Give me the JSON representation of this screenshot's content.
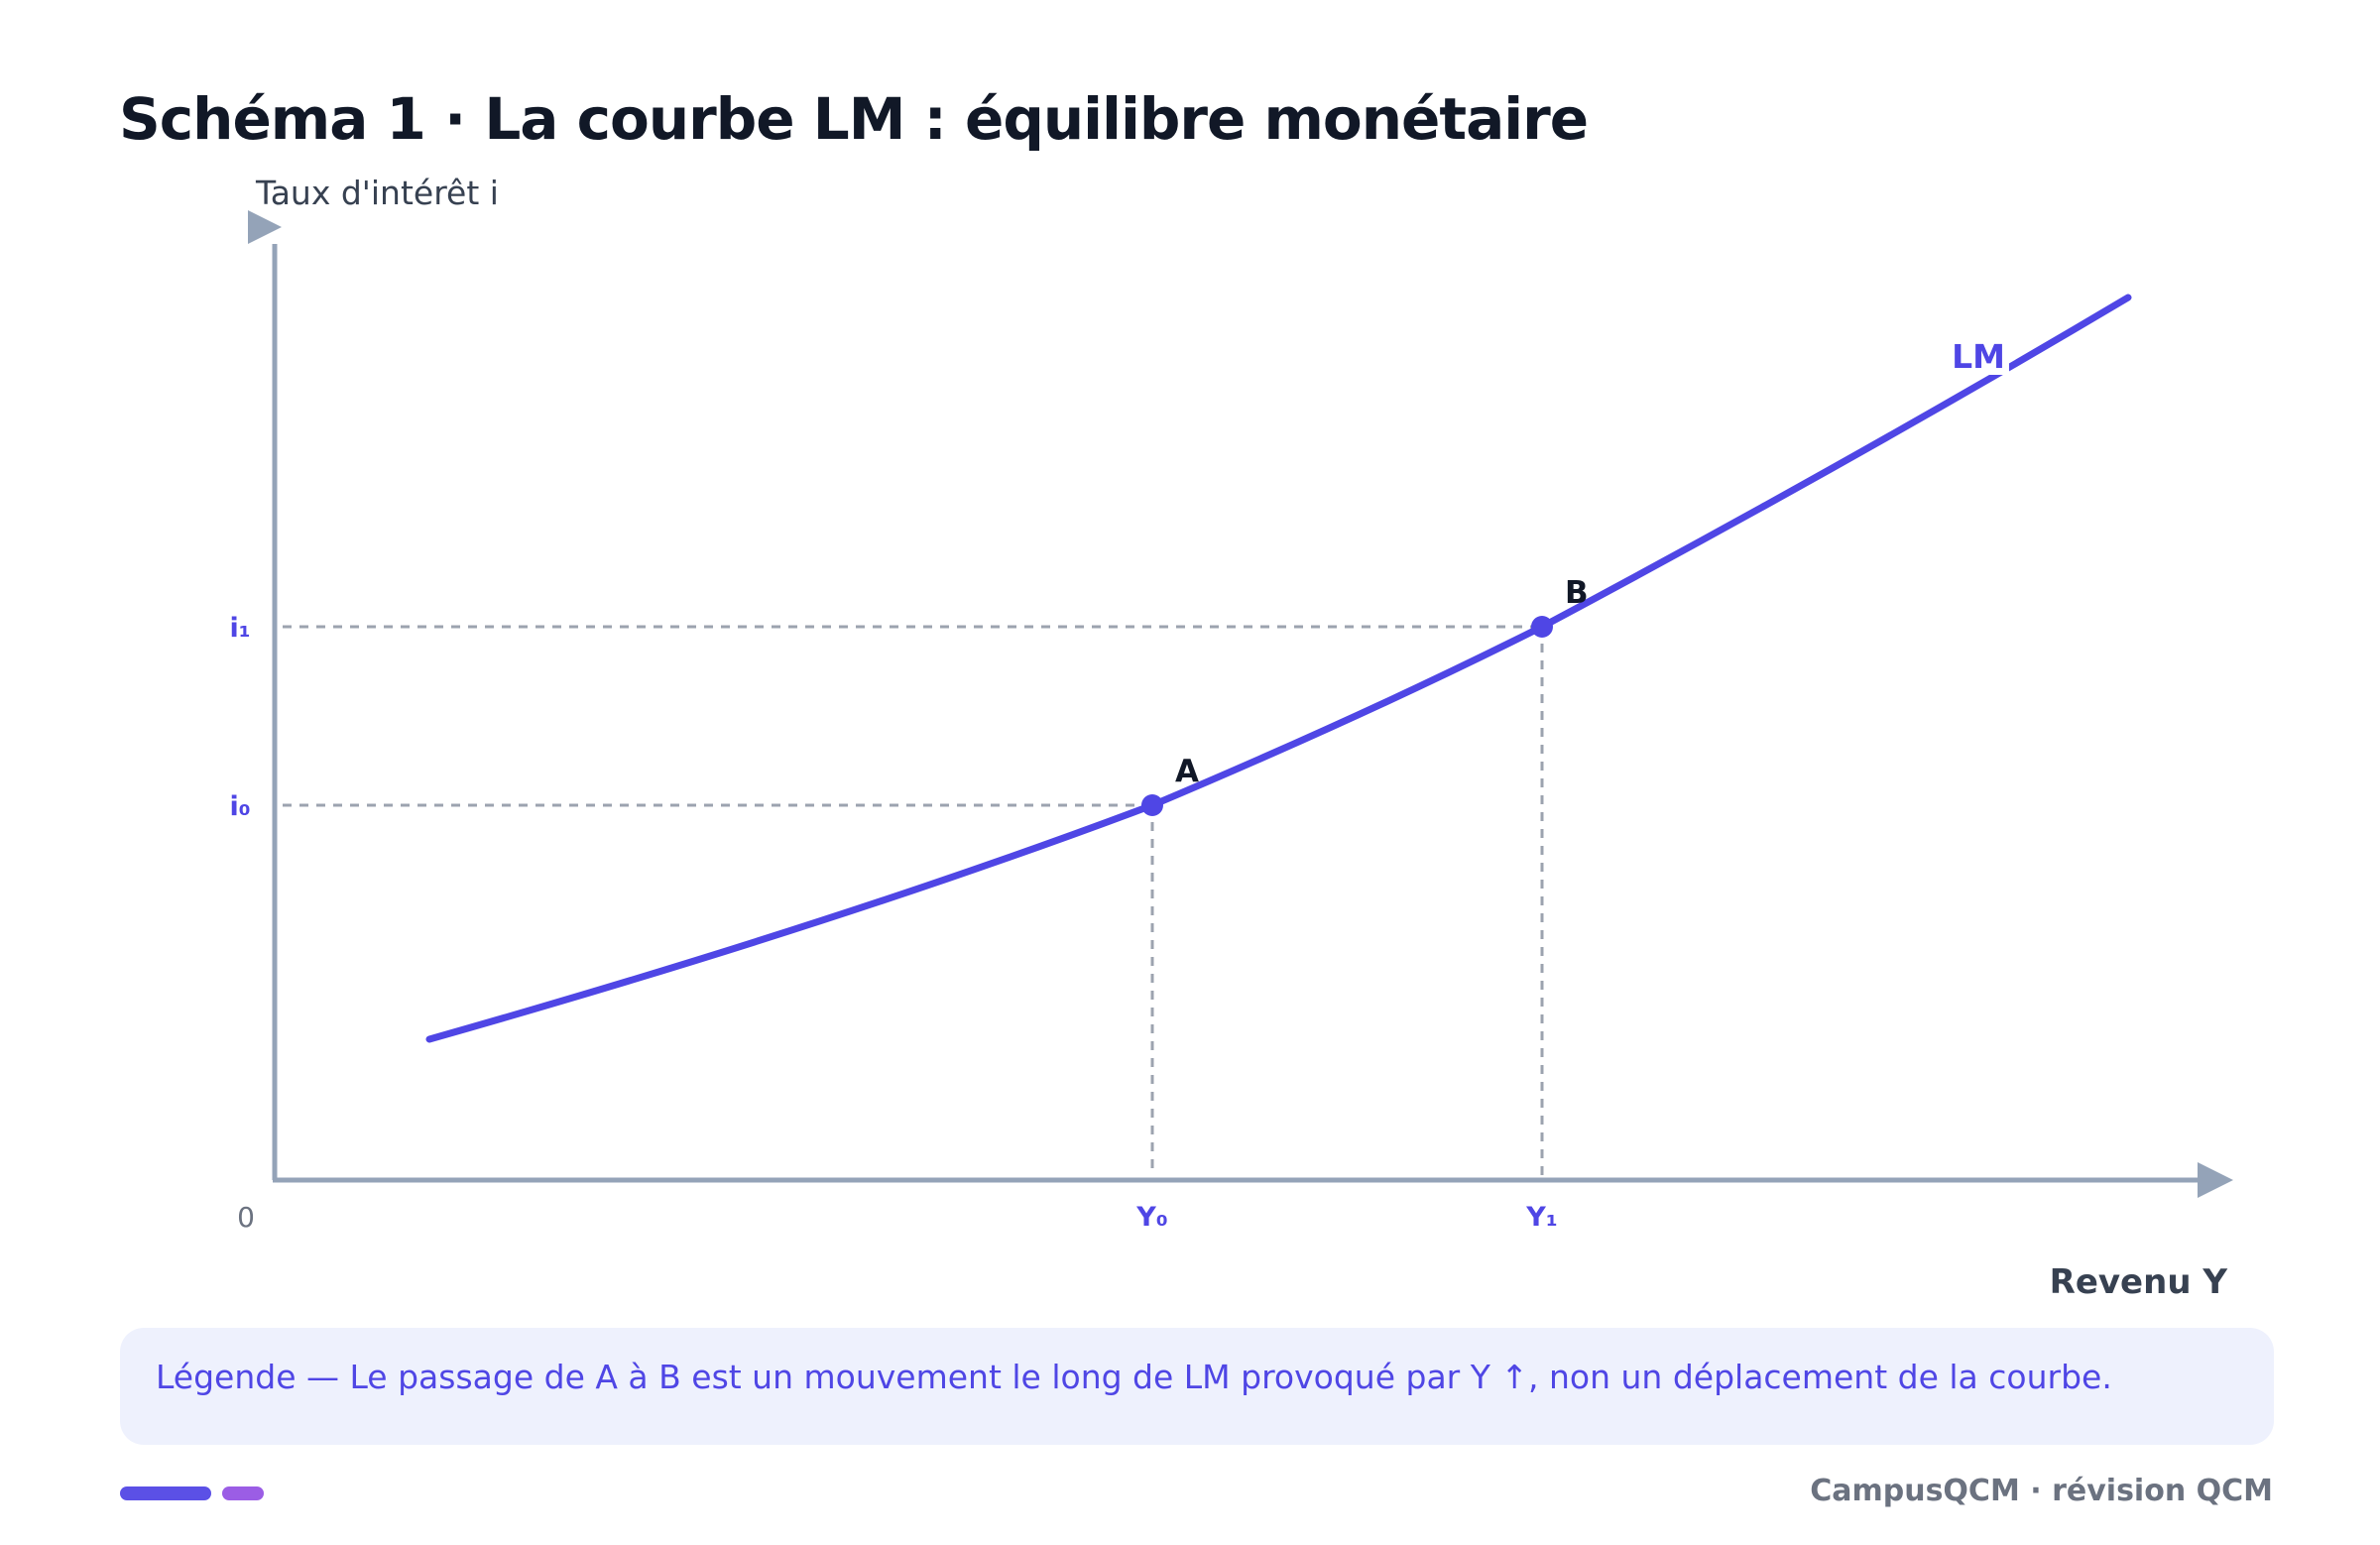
{
  "title": "Schéma 1 · La courbe LM : équilibre monétaire",
  "diagram": {
    "y_axis_label": "Taux d'intérêt i",
    "x_axis_label": "Revenu Y",
    "origin_label": "0",
    "curve_label": "LM",
    "points": [
      {
        "label": "A",
        "x_tick": "Y₀",
        "y_tick": "i₀"
      },
      {
        "label": "B",
        "x_tick": "Y₁",
        "y_tick": "i₁"
      }
    ]
  },
  "legend": "Légende — Le passage de A à B est un mouvement le long de LM provoqué par Y ↑, non un déplacement de la courbe.",
  "footer": "CampusQCM · révision QCM",
  "colors": {
    "curve": "#4f46e5",
    "axis": "#94a3b8",
    "guide": "#9ca3af",
    "title": "#111827",
    "legend_bg": "#eef1fd",
    "accent_1": "#5b50e6",
    "accent_2": "#9b5de5"
  }
}
